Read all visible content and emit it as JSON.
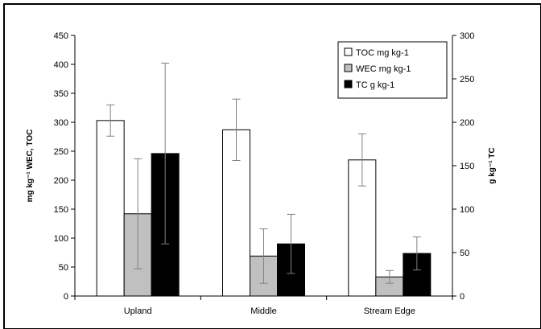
{
  "chart_data": {
    "type": "bar",
    "categories": [
      "Upland",
      "Middle",
      "Stream Edge"
    ],
    "ylabel": "mg kg⁻¹ WEC, TOC",
    "y2label": "g kg⁻¹ TC",
    "ylim": [
      0,
      450
    ],
    "y2lim": [
      0,
      300
    ],
    "yticks": [
      "0",
      "50",
      "100",
      "150",
      "200",
      "250",
      "300",
      "350",
      "400",
      "450"
    ],
    "y2ticks": [
      "0",
      "50",
      "100",
      "150",
      "200",
      "250",
      "300"
    ],
    "legend_position": "top-right",
    "grid": false,
    "series": [
      {
        "name": "TOC mg kg-1",
        "axis": "left",
        "color": "#ffffff",
        "values": [
          303,
          287,
          235
        ],
        "errors": [
          27,
          53,
          45
        ]
      },
      {
        "name": "WEC  mg kg-1",
        "axis": "left",
        "color": "#c0c0c0",
        "values": [
          142,
          69,
          33
        ],
        "errors": [
          95,
          47,
          11
        ]
      },
      {
        "name": "TC g kg-1",
        "axis": "right",
        "color": "#000000",
        "values": [
          164,
          60,
          49
        ],
        "errors": [
          104,
          34,
          19
        ]
      }
    ]
  }
}
